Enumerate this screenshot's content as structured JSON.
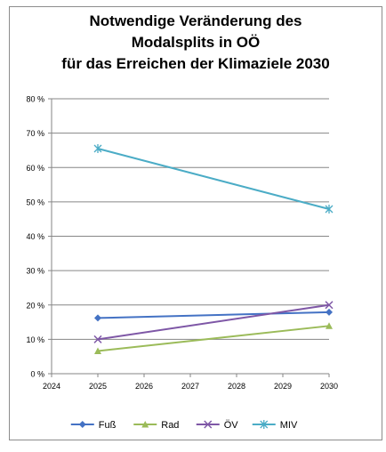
{
  "chart_data": {
    "type": "line",
    "title_lines": [
      "Notwendige Veränderung des",
      "Modalsplits in OÖ",
      "für das Erreichen der Klimaziele 2030"
    ],
    "xlabel": "",
    "ylabel": "",
    "xlim": [
      2024,
      2030
    ],
    "ylim": [
      0,
      80
    ],
    "x_ticks": [
      "2024",
      "2025",
      "2026",
      "2027",
      "2028",
      "2029",
      "2030"
    ],
    "y_ticks": [
      "0 %",
      "10 %",
      "20 %",
      "30 %",
      "40 %",
      "50 %",
      "60 %",
      "70 %",
      "80 %"
    ],
    "grid": "horizontal",
    "legend_position": "bottom",
    "series": [
      {
        "name": "Fuß",
        "color": "#4472C4",
        "marker": "diamond",
        "points": [
          [
            2025,
            16.2
          ],
          [
            2030,
            17.9
          ]
        ]
      },
      {
        "name": "Rad",
        "color": "#9BBB59",
        "marker": "triangle",
        "points": [
          [
            2025,
            6.6
          ],
          [
            2030,
            13.9
          ]
        ]
      },
      {
        "name": "ÖV",
        "color": "#7E57A6",
        "marker": "x",
        "points": [
          [
            2025,
            10.0
          ],
          [
            2030,
            20.0
          ]
        ]
      },
      {
        "name": "MIV",
        "color": "#4BACC6",
        "marker": "star",
        "points": [
          [
            2025,
            65.5
          ],
          [
            2030,
            47.9
          ]
        ]
      }
    ]
  }
}
